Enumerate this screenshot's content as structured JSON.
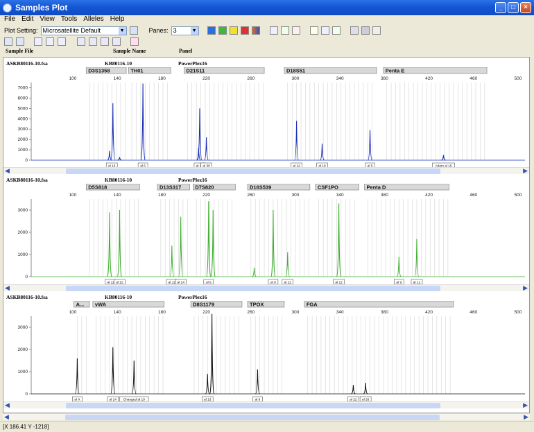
{
  "window": {
    "title": "Samples Plot"
  },
  "menu": [
    "File",
    "Edit",
    "View",
    "Tools",
    "Alleles",
    "Help"
  ],
  "toolbar": {
    "plot_setting_label": "Plot Setting:",
    "plot_setting_value": "Microsatellite Default",
    "panes_label": "Panes:",
    "panes_value": "3"
  },
  "columns": {
    "sample_file": "Sample File",
    "sample_name": "Sample Name",
    "panel": "Panel"
  },
  "panes": [
    {
      "sample_file": "ASKB80116-10.fsa",
      "sample_name": "KB80116-10",
      "panel": "PowerPlex16",
      "color": "#1a2fb8",
      "markers": [
        {
          "name": "D3S1358",
          "start": 112,
          "end": 148
        },
        {
          "name": "TH01",
          "start": 150,
          "end": 188
        },
        {
          "name": "D21S11",
          "start": 200,
          "end": 272
        },
        {
          "name": "D18S51",
          "start": 290,
          "end": 373
        },
        {
          "name": "Penta E",
          "start": 379,
          "end": 472
        }
      ],
      "x_ticks": [
        100,
        140,
        180,
        220,
        260,
        300,
        340,
        380,
        420,
        460,
        500
      ],
      "y_ticks": [
        0,
        1000,
        2000,
        3000,
        4000,
        5000,
        6000,
        7000
      ],
      "y_max": 7500,
      "peaks": [
        {
          "x": 133,
          "y": 900
        },
        {
          "x": 136,
          "y": 5500
        },
        {
          "x": 142,
          "y": 300
        },
        {
          "x": 163,
          "y": 7400
        },
        {
          "x": 213,
          "y": 1200
        },
        {
          "x": 214,
          "y": 5000
        },
        {
          "x": 220,
          "y": 2200
        },
        {
          "x": 301,
          "y": 3800
        },
        {
          "x": 324,
          "y": 1600
        },
        {
          "x": 367,
          "y": 2900
        },
        {
          "x": 433,
          "y": 500
        }
      ],
      "allele_labels": [
        {
          "x": 135,
          "text": "al 16"
        },
        {
          "x": 163,
          "text": "al 6"
        },
        {
          "x": 214,
          "text": "al 28"
        },
        {
          "x": 220,
          "text": "al 30"
        },
        {
          "x": 301,
          "text": "al 12"
        },
        {
          "x": 324,
          "text": "al 18"
        },
        {
          "x": 367,
          "text": "al 5"
        },
        {
          "x": 433,
          "text": "Adam al 15"
        }
      ]
    },
    {
      "sample_file": "ASKB80116-10.fsa",
      "sample_name": "KB80116-10",
      "panel": "PowerPlex16",
      "color": "#3fae2f",
      "markers": [
        {
          "name": "D5S818",
          "start": 112,
          "end": 160
        },
        {
          "name": "D13S317",
          "start": 176,
          "end": 205
        },
        {
          "name": "D7S820",
          "start": 208,
          "end": 246
        },
        {
          "name": "D16S539",
          "start": 257,
          "end": 313
        },
        {
          "name": "CSF1PO",
          "start": 318,
          "end": 357
        },
        {
          "name": "Penta D",
          "start": 362,
          "end": 438
        }
      ],
      "x_ticks": [
        100,
        140,
        180,
        220,
        260,
        300,
        340,
        380,
        420,
        460,
        500
      ],
      "y_ticks": [
        0,
        1000,
        2000,
        3000
      ],
      "y_max": 3500,
      "peaks": [
        {
          "x": 133,
          "y": 2900
        },
        {
          "x": 142,
          "y": 3000
        },
        {
          "x": 189,
          "y": 1400
        },
        {
          "x": 197,
          "y": 2700
        },
        {
          "x": 222,
          "y": 3400
        },
        {
          "x": 226,
          "y": 3000
        },
        {
          "x": 263,
          "y": 400
        },
        {
          "x": 280,
          "y": 3000
        },
        {
          "x": 293,
          "y": 1100
        },
        {
          "x": 339,
          "y": 3300
        },
        {
          "x": 393,
          "y": 900
        },
        {
          "x": 409,
          "y": 1700
        }
      ],
      "allele_labels": [
        {
          "x": 134,
          "text": "al 11"
        },
        {
          "x": 142,
          "text": "al 12"
        },
        {
          "x": 189,
          "text": "al 12"
        },
        {
          "x": 197,
          "text": "al 14"
        },
        {
          "x": 222,
          "text": "al 9"
        },
        {
          "x": 280,
          "text": "al 9"
        },
        {
          "x": 293,
          "text": "al 12"
        },
        {
          "x": 339,
          "text": "al 12"
        },
        {
          "x": 393,
          "text": "al 9"
        },
        {
          "x": 409,
          "text": "al 12"
        },
        {
          "x": 225,
          "text": "al 10"
        }
      ]
    },
    {
      "sample_file": "ASKB80116-10.fsa",
      "sample_name": "KB80116-10",
      "panel": "PowerPlex16",
      "color": "#111111",
      "markers": [
        {
          "name": "A...",
          "start": 101,
          "end": 115
        },
        {
          "name": "vWA",
          "start": 118,
          "end": 182
        },
        {
          "name": "D8S1179",
          "start": 206,
          "end": 252
        },
        {
          "name": "TPOX",
          "start": 257,
          "end": 290
        },
        {
          "name": "FGA",
          "start": 308,
          "end": 442
        }
      ],
      "x_ticks": [
        100,
        140,
        180,
        220,
        260,
        300,
        340,
        380,
        420,
        460,
        500
      ],
      "y_ticks": [
        0,
        1000,
        2000,
        3000
      ],
      "y_max": 3500,
      "peaks": [
        {
          "x": 104,
          "y": 1600
        },
        {
          "x": 136,
          "y": 2100
        },
        {
          "x": 155,
          "y": 1500
        },
        {
          "x": 221,
          "y": 900
        },
        {
          "x": 225,
          "y": 3600
        },
        {
          "x": 266,
          "y": 1100
        },
        {
          "x": 352,
          "y": 400
        },
        {
          "x": 363,
          "y": 500
        }
      ],
      "allele_labels": [
        {
          "x": 104,
          "text": "al X"
        },
        {
          "x": 136,
          "text": "al 14"
        },
        {
          "x": 155,
          "text": "Changed al 19"
        },
        {
          "x": 221,
          "text": "al 13"
        },
        {
          "x": 266,
          "text": "al 8"
        },
        {
          "x": 352,
          "text": "al 22"
        },
        {
          "x": 363,
          "text": "al 26"
        },
        {
          "x": 225,
          "text": "al 14"
        }
      ]
    }
  ],
  "status": {
    "coords": "[X 186.41  Y -1218]"
  }
}
